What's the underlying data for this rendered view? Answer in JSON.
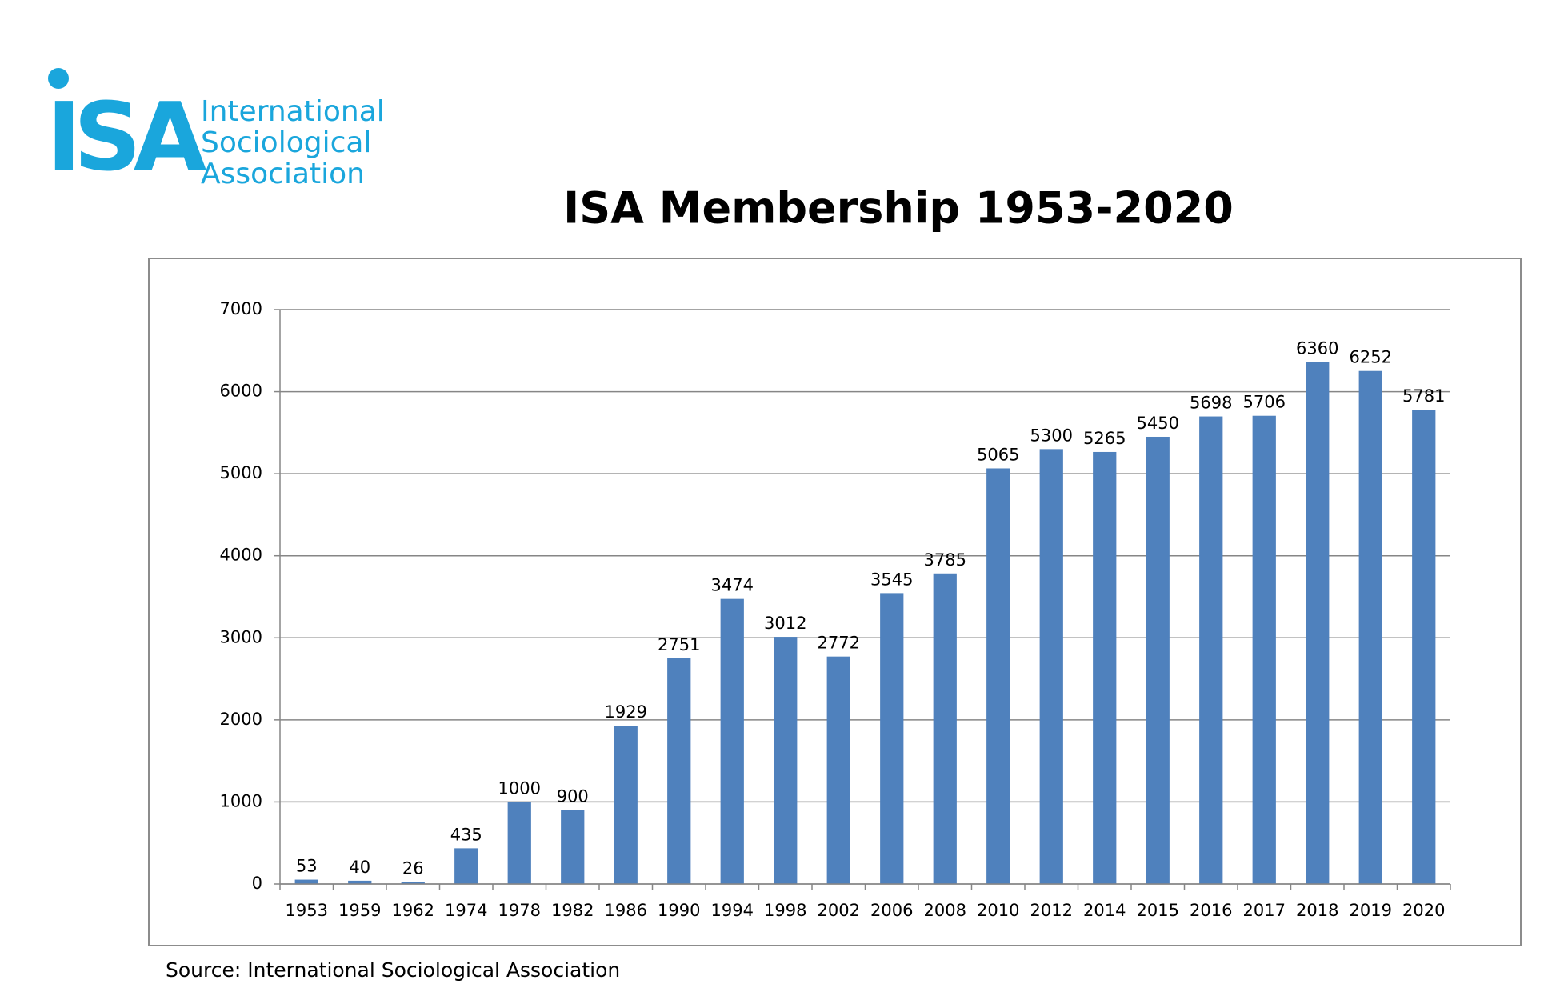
{
  "logo": {
    "mark": "ISA",
    "lines": [
      "International",
      "Sociological",
      "Association"
    ]
  },
  "chart_data": {
    "type": "bar",
    "title": "ISA Membership 1953-2020",
    "categories": [
      "1953",
      "1959",
      "1962",
      "1974",
      "1978",
      "1982",
      "1986",
      "1990",
      "1994",
      "1998",
      "2002",
      "2006",
      "2008",
      "2010",
      "2012",
      "2014",
      "2015",
      "2016",
      "2017",
      "2018",
      "2019",
      "2020"
    ],
    "values": [
      53,
      40,
      26,
      435,
      1000,
      900,
      1929,
      2751,
      3474,
      3012,
      2772,
      3545,
      3785,
      5065,
      5300,
      5265,
      5450,
      5698,
      5706,
      6360,
      6252,
      5781
    ],
    "color": "#4f81bd",
    "ylim": [
      0,
      7000
    ],
    "yticks": [
      0,
      1000,
      2000,
      3000,
      4000,
      5000,
      6000,
      7000
    ],
    "grid": true,
    "source": "Source: International Sociological Association"
  }
}
